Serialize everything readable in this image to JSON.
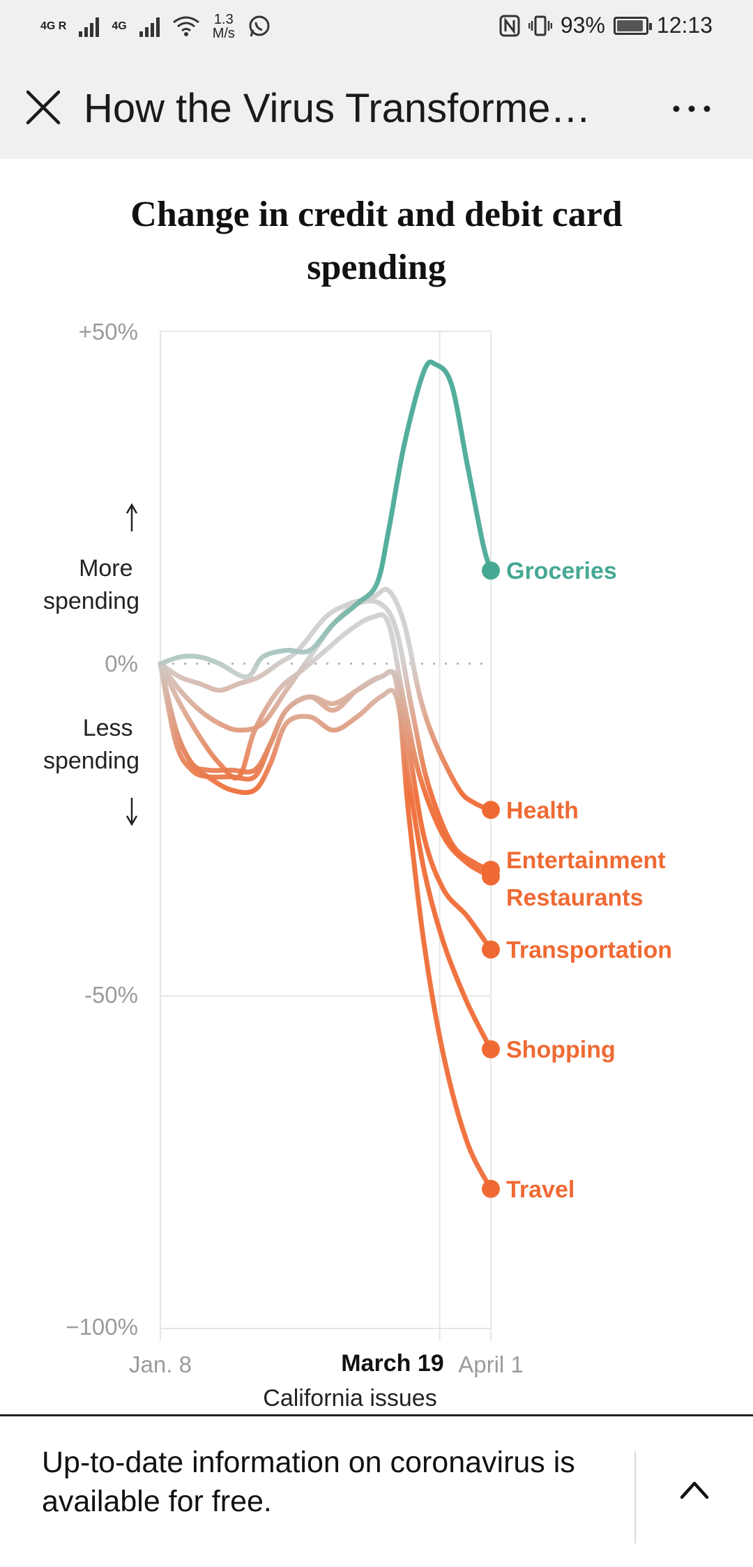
{
  "status_bar": {
    "signal1_label": "4G R",
    "signal2_label": "4G",
    "speed_value": "1.3",
    "speed_unit": "M/s",
    "battery": "93%",
    "battery_level": 0.93,
    "time": "12:13"
  },
  "app_bar": {
    "title": "How the Virus Transforme…"
  },
  "banner": {
    "text": "Up-to-date information on coronavirus is available for free."
  },
  "colors": {
    "groceries": "#46a894",
    "decline": "#ef6a33",
    "neutral": "#c9c9c9",
    "grid": "#e6e6e6"
  },
  "chart_data": {
    "type": "line",
    "title": "Change in credit and debit card spending",
    "x_axis": {
      "ticks": [
        "Jan. 8",
        "March 19",
        "April 1"
      ],
      "annotation": "California issues"
    },
    "y_axis": {
      "ticks": [
        "+50%",
        "0%",
        "-50%",
        "−100%"
      ],
      "tick_values": [
        50,
        0,
        -50,
        -100
      ],
      "range": [
        -100,
        50
      ],
      "upper_note": "More spending",
      "lower_note": "Less spending"
    },
    "x_range_days": [
      0,
      84
    ],
    "x_tick_days": [
      0,
      71,
      84
    ],
    "series": [
      {
        "name": "Groceries",
        "color_key": "groceries",
        "points": [
          [
            0,
            0
          ],
          [
            5,
            1
          ],
          [
            10,
            1
          ],
          [
            15,
            0
          ],
          [
            22,
            -2
          ],
          [
            26,
            1
          ],
          [
            32,
            2
          ],
          [
            38,
            2
          ],
          [
            44,
            6
          ],
          [
            50,
            9
          ],
          [
            55,
            12
          ],
          [
            58,
            20
          ],
          [
            62,
            33
          ],
          [
            67,
            44
          ],
          [
            70,
            45
          ],
          [
            74,
            42
          ],
          [
            78,
            30
          ],
          [
            82,
            18
          ],
          [
            84,
            14
          ]
        ]
      },
      {
        "name": "Health",
        "color_key": "decline",
        "points": [
          [
            0,
            0
          ],
          [
            5,
            -2
          ],
          [
            10,
            -3
          ],
          [
            15,
            -4
          ],
          [
            20,
            -3
          ],
          [
            25,
            -2
          ],
          [
            30,
            0
          ],
          [
            35,
            2
          ],
          [
            42,
            7
          ],
          [
            48,
            9
          ],
          [
            54,
            10
          ],
          [
            58,
            11
          ],
          [
            62,
            6
          ],
          [
            66,
            -5
          ],
          [
            70,
            -12
          ],
          [
            76,
            -19
          ],
          [
            80,
            -21
          ],
          [
            84,
            -22
          ]
        ]
      },
      {
        "name": "Entertainment",
        "color_key": "decline",
        "points": [
          [
            0,
            0
          ],
          [
            5,
            -4
          ],
          [
            10,
            -7
          ],
          [
            15,
            -9
          ],
          [
            20,
            -10
          ],
          [
            26,
            -9
          ],
          [
            32,
            -4
          ],
          [
            38,
            1
          ],
          [
            44,
            6
          ],
          [
            50,
            9
          ],
          [
            56,
            9
          ],
          [
            60,
            5
          ],
          [
            64,
            -7
          ],
          [
            68,
            -18
          ],
          [
            74,
            -27
          ],
          [
            80,
            -30
          ],
          [
            84,
            -31
          ]
        ]
      },
      {
        "name": "Restaurants",
        "color_key": "decline",
        "points": [
          [
            0,
            0
          ],
          [
            5,
            -6
          ],
          [
            10,
            -11
          ],
          [
            15,
            -15
          ],
          [
            20,
            -17
          ],
          [
            24,
            -10
          ],
          [
            30,
            -4
          ],
          [
            36,
            -1
          ],
          [
            42,
            2
          ],
          [
            48,
            5
          ],
          [
            54,
            7
          ],
          [
            58,
            6
          ],
          [
            62,
            -6
          ],
          [
            66,
            -17
          ],
          [
            72,
            -26
          ],
          [
            78,
            -30
          ],
          [
            84,
            -32
          ]
        ]
      },
      {
        "name": "Transportation",
        "color_key": "decline",
        "points": [
          [
            0,
            0
          ],
          [
            4,
            -10
          ],
          [
            8,
            -15
          ],
          [
            12,
            -16
          ],
          [
            18,
            -16
          ],
          [
            24,
            -16
          ],
          [
            28,
            -12
          ],
          [
            32,
            -7
          ],
          [
            38,
            -5
          ],
          [
            44,
            -6
          ],
          [
            50,
            -4
          ],
          [
            56,
            -2
          ],
          [
            60,
            -2
          ],
          [
            63,
            -12
          ],
          [
            67,
            -26
          ],
          [
            72,
            -34
          ],
          [
            78,
            -38
          ],
          [
            84,
            -43
          ]
        ]
      },
      {
        "name": "Shopping",
        "color_key": "decline",
        "points": [
          [
            0,
            0
          ],
          [
            4,
            -10
          ],
          [
            8,
            -15
          ],
          [
            12,
            -17
          ],
          [
            18,
            -19
          ],
          [
            24,
            -19
          ],
          [
            28,
            -15
          ],
          [
            32,
            -9
          ],
          [
            38,
            -8
          ],
          [
            44,
            -10
          ],
          [
            50,
            -8
          ],
          [
            56,
            -5
          ],
          [
            60,
            -5
          ],
          [
            63,
            -17
          ],
          [
            67,
            -31
          ],
          [
            72,
            -42
          ],
          [
            78,
            -51
          ],
          [
            84,
            -58
          ]
        ]
      },
      {
        "name": "Travel",
        "color_key": "decline",
        "points": [
          [
            0,
            0
          ],
          [
            4,
            -12
          ],
          [
            8,
            -16
          ],
          [
            12,
            -17
          ],
          [
            18,
            -17
          ],
          [
            24,
            -17
          ],
          [
            28,
            -12
          ],
          [
            32,
            -7
          ],
          [
            38,
            -5
          ],
          [
            44,
            -7
          ],
          [
            50,
            -4
          ],
          [
            56,
            -2
          ],
          [
            60,
            -3
          ],
          [
            63,
            -22
          ],
          [
            67,
            -42
          ],
          [
            72,
            -59
          ],
          [
            78,
            -72
          ],
          [
            84,
            -79
          ]
        ]
      }
    ],
    "end_labels": [
      {
        "text": "Groceries",
        "series": "Groceries"
      },
      {
        "text": "Health",
        "series": "Health"
      },
      {
        "text": "Entertainment",
        "series": "Entertainment"
      },
      {
        "text": "Restaurants",
        "series": "Restaurants"
      },
      {
        "text": "Transportation",
        "series": "Transportation"
      },
      {
        "text": "Shopping",
        "series": "Shopping"
      },
      {
        "text": "Travel",
        "series": "Travel"
      }
    ]
  }
}
